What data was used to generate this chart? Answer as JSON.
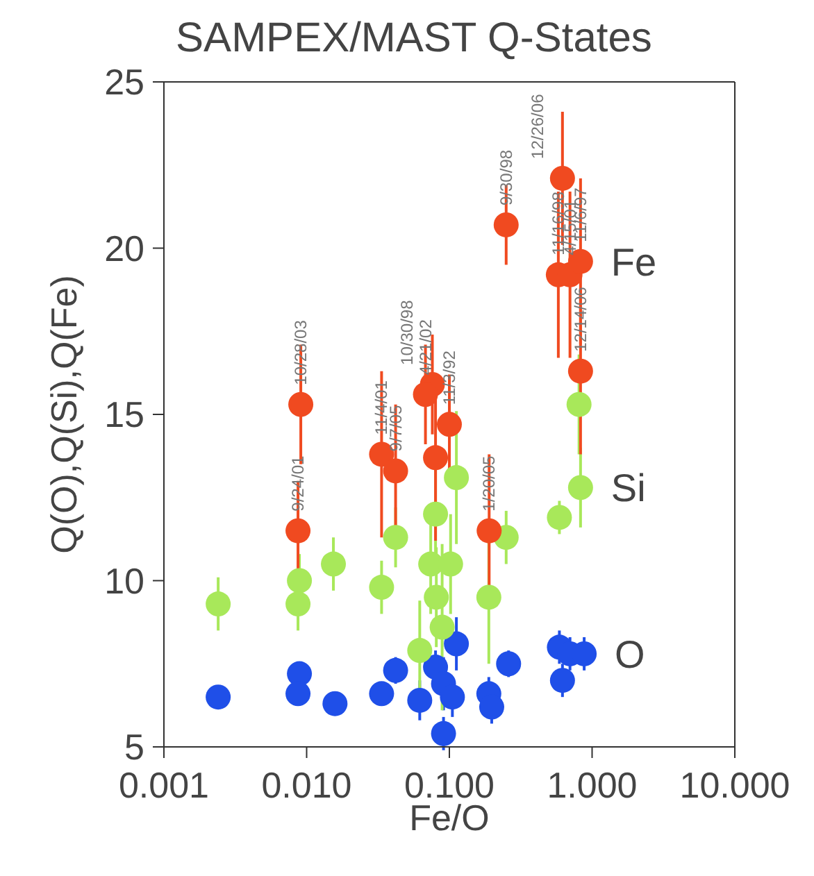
{
  "chart_data": {
    "type": "scatter",
    "title": "SAMPEX/MAST Q-States",
    "xlabel": "Fe/O",
    "ylabel": "Q(O),Q(Si),Q(Fe)",
    "log": "x",
    "xlim": [
      0.001,
      10
    ],
    "xticks": [
      {
        "value": 0.001,
        "label": "0.001"
      },
      {
        "value": 0.01,
        "label": "0.010"
      },
      {
        "value": 0.1,
        "label": "0.100"
      },
      {
        "value": 1,
        "label": "1.000"
      },
      {
        "value": 10,
        "label": "10.000"
      }
    ],
    "ylim": [
      5,
      25
    ],
    "yticks": [
      5,
      10,
      15,
      20,
      25
    ],
    "legend": "right",
    "marker": "circle",
    "series": [
      {
        "name": "O",
        "color": "#1f4fe8",
        "x": [
          0.0024,
          0.0089,
          0.0087,
          0.0158,
          0.0335,
          0.042,
          0.062,
          0.08,
          0.091,
          0.105,
          0.112,
          0.091,
          0.189,
          0.198,
          0.26,
          0.59,
          0.62,
          0.7,
          0.88
        ],
        "values": [
          6.5,
          7.2,
          6.6,
          6.3,
          6.6,
          7.3,
          6.4,
          7.4,
          6.9,
          6.5,
          8.1,
          5.4,
          6.6,
          6.2,
          7.5,
          8.0,
          7.0,
          7.8,
          7.8
        ],
        "errors": [
          0.3,
          0.3,
          0.3,
          0.3,
          0.3,
          0.4,
          0.6,
          0.5,
          0.8,
          0.6,
          0.8,
          0.5,
          0.5,
          0.5,
          0.4,
          0.5,
          0.5,
          0.5,
          0.5
        ]
      },
      {
        "name": "Si",
        "color": "#a8e85a",
        "x": [
          0.0024,
          0.0089,
          0.0087,
          0.0154,
          0.0335,
          0.042,
          0.062,
          0.08,
          0.074,
          0.102,
          0.081,
          0.089,
          0.112,
          0.189,
          0.25,
          0.59,
          0.83,
          0.81
        ],
        "values": [
          9.3,
          10.0,
          9.3,
          10.5,
          9.8,
          11.3,
          7.9,
          12.0,
          10.5,
          10.5,
          9.5,
          8.6,
          13.1,
          9.5,
          11.3,
          11.9,
          12.8,
          15.3
        ],
        "errors": [
          0.8,
          0.8,
          0.8,
          0.8,
          0.8,
          0.9,
          1.5,
          1.5,
          1.5,
          1.5,
          1.5,
          2.5,
          2.0,
          2.0,
          0.8,
          0.5,
          1.2,
          1.5
        ]
      },
      {
        "name": "Fe",
        "color": "#f04a20",
        "x": [
          0.0091,
          0.0087,
          0.0335,
          0.042,
          0.08,
          0.1,
          0.076,
          0.068,
          0.25,
          0.62,
          0.58,
          0.7,
          0.83,
          0.83,
          0.19
        ],
        "values": [
          15.3,
          11.5,
          13.8,
          13.3,
          13.7,
          14.7,
          15.9,
          15.6,
          20.7,
          22.1,
          19.2,
          19.2,
          19.6,
          16.3,
          11.5
        ],
        "errors": [
          1.8,
          1.5,
          2.5,
          2.0,
          2.5,
          1.5,
          1.5,
          1.5,
          1.2,
          2.0,
          2.5,
          2.5,
          2.5,
          2.5,
          2.3
        ]
      }
    ],
    "annotations": [
      {
        "text": "10/28/03",
        "x": 0.0091,
        "y": 15.3
      },
      {
        "text": "9/24/01",
        "x": 0.0087,
        "y": 11.5
      },
      {
        "text": "11/4/01",
        "x": 0.0335,
        "y": 13.8
      },
      {
        "text": "9/7/05",
        "x": 0.042,
        "y": 13.3
      },
      {
        "text": "4/21/02",
        "x": 0.068,
        "y": 15.6
      },
      {
        "text": "10/30/98",
        "x": 0.076,
        "y": 15.9
      },
      {
        "text": "11/3/92",
        "x": 0.1,
        "y": 14.7
      },
      {
        "text": "9/30/98",
        "x": 0.25,
        "y": 20.7
      },
      {
        "text": "1/20/05",
        "x": 0.19,
        "y": 11.5
      },
      {
        "text": "11/16/98",
        "x": 0.58,
        "y": 19.2
      },
      {
        "text": "12/26/06",
        "x": 0.62,
        "y": 22.1
      },
      {
        "text": "4/15/01",
        "x": 0.7,
        "y": 19.2
      },
      {
        "text": "11/6/97",
        "x": 0.83,
        "y": 19.6
      },
      {
        "text": "12/14/06",
        "x": 0.83,
        "y": 16.3
      }
    ]
  }
}
